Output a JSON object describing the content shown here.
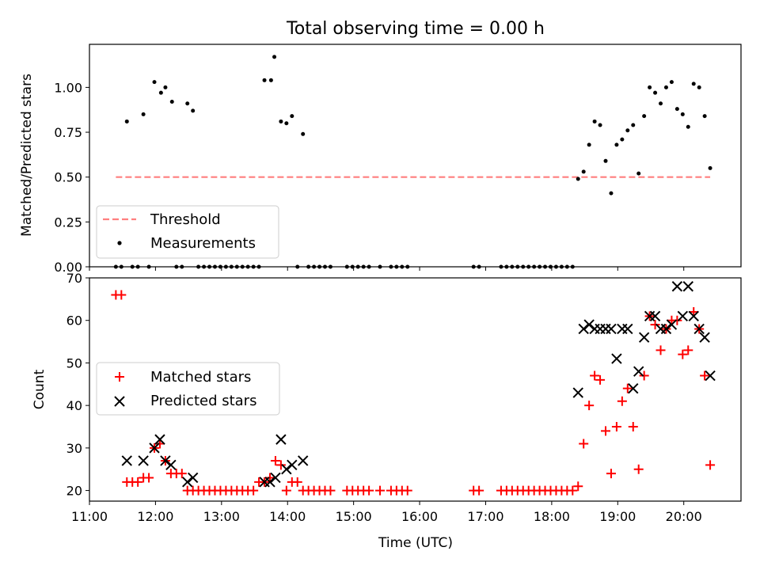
{
  "chart_data": [
    {
      "type": "scatter",
      "title": "Total observing time = 0.00 h",
      "xlabel": "",
      "ylabel": "Matched/Predicted stars",
      "xlim": [
        "11:00",
        "20:52"
      ],
      "ylim": [
        0,
        1.24
      ],
      "yticks": [
        "0.00",
        "0.25",
        "0.50",
        "0.75",
        "1.00"
      ],
      "grid": false,
      "legend_position": "lower-left",
      "threshold": {
        "name": "Threshold",
        "value": 0.5,
        "x_start": "11:24",
        "x_end": "20:24",
        "color": "#ff7f7f"
      },
      "series": [
        {
          "name": "Measurements",
          "color": "#000000",
          "points": [
            [
              "11:34",
              0.81
            ],
            [
              "11:49",
              0.85
            ],
            [
              "11:59",
              1.03
            ],
            [
              "12:05",
              0.97
            ],
            [
              "12:09",
              1.0
            ],
            [
              "12:15",
              0.92
            ],
            [
              "12:29",
              0.91
            ],
            [
              "12:34",
              0.87
            ],
            [
              "13:39",
              1.04
            ],
            [
              "13:45",
              1.04
            ],
            [
              "13:48",
              1.17
            ],
            [
              "13:54",
              0.81
            ],
            [
              "13:59",
              0.8
            ],
            [
              "14:04",
              0.84
            ],
            [
              "14:14",
              0.74
            ],
            [
              "18:24",
              0.49
            ],
            [
              "18:29",
              0.53
            ],
            [
              "18:34",
              0.68
            ],
            [
              "18:39",
              0.81
            ],
            [
              "18:44",
              0.79
            ],
            [
              "18:49",
              0.59
            ],
            [
              "18:54",
              0.41
            ],
            [
              "18:59",
              0.68
            ],
            [
              "19:04",
              0.71
            ],
            [
              "19:09",
              0.76
            ],
            [
              "19:14",
              0.79
            ],
            [
              "19:19",
              0.52
            ],
            [
              "19:24",
              0.84
            ],
            [
              "19:29",
              1.0
            ],
            [
              "19:34",
              0.97
            ],
            [
              "19:39",
              0.91
            ],
            [
              "19:44",
              1.0
            ],
            [
              "19:49",
              1.03
            ],
            [
              "19:54",
              0.88
            ],
            [
              "19:59",
              0.85
            ],
            [
              "20:04",
              0.78
            ],
            [
              "20:09",
              1.02
            ],
            [
              "20:14",
              1.0
            ],
            [
              "20:19",
              0.84
            ],
            [
              "20:24",
              0.55
            ],
            [
              "11:24",
              0
            ],
            [
              "11:29",
              0
            ],
            [
              "11:39",
              0
            ],
            [
              "11:44",
              0
            ],
            [
              "11:54",
              0
            ],
            [
              "12:19",
              0
            ],
            [
              "12:24",
              0
            ],
            [
              "12:39",
              0
            ],
            [
              "12:44",
              0
            ],
            [
              "12:49",
              0
            ],
            [
              "12:54",
              0
            ],
            [
              "12:59",
              0
            ],
            [
              "13:04",
              0
            ],
            [
              "13:09",
              0
            ],
            [
              "13:14",
              0
            ],
            [
              "13:19",
              0
            ],
            [
              "13:24",
              0
            ],
            [
              "13:29",
              0
            ],
            [
              "13:34",
              0
            ],
            [
              "14:09",
              0
            ],
            [
              "14:19",
              0
            ],
            [
              "14:24",
              0
            ],
            [
              "14:29",
              0
            ],
            [
              "14:34",
              0
            ],
            [
              "14:39",
              0
            ],
            [
              "14:54",
              0
            ],
            [
              "14:59",
              0
            ],
            [
              "15:04",
              0
            ],
            [
              "15:09",
              0
            ],
            [
              "15:14",
              0
            ],
            [
              "15:24",
              0
            ],
            [
              "15:34",
              0
            ],
            [
              "15:39",
              0
            ],
            [
              "15:44",
              0
            ],
            [
              "15:49",
              0
            ],
            [
              "16:49",
              0
            ],
            [
              "16:54",
              0
            ],
            [
              "17:14",
              0
            ],
            [
              "17:19",
              0
            ],
            [
              "17:24",
              0
            ],
            [
              "17:29",
              0
            ],
            [
              "17:34",
              0
            ],
            [
              "17:39",
              0
            ],
            [
              "17:44",
              0
            ],
            [
              "17:49",
              0
            ],
            [
              "17:54",
              0
            ],
            [
              "17:59",
              0
            ],
            [
              "18:04",
              0
            ],
            [
              "18:09",
              0
            ],
            [
              "18:14",
              0
            ],
            [
              "18:19",
              0
            ]
          ]
        }
      ]
    },
    {
      "type": "scatter",
      "title": "",
      "xlabel": "Time (UTC)",
      "ylabel": "Count",
      "xlim": [
        "11:00",
        "20:52"
      ],
      "ylim": [
        17.5,
        70
      ],
      "xticks": [
        "11:00",
        "12:00",
        "13:00",
        "14:00",
        "15:00",
        "16:00",
        "17:00",
        "18:00",
        "19:00",
        "20:00"
      ],
      "yticks": [
        "20",
        "30",
        "40",
        "50",
        "60",
        "70"
      ],
      "grid": false,
      "legend_position": "center-left",
      "series": [
        {
          "name": "Matched stars",
          "marker": "plus",
          "color": "#ff0000",
          "points": [
            [
              "11:24",
              66
            ],
            [
              "11:29",
              66
            ],
            [
              "11:34",
              22
            ],
            [
              "11:39",
              22
            ],
            [
              "11:44",
              22
            ],
            [
              "11:49",
              23
            ],
            [
              "11:54",
              23
            ],
            [
              "11:59",
              30
            ],
            [
              "12:04",
              31
            ],
            [
              "12:09",
              27
            ],
            [
              "12:14",
              24
            ],
            [
              "12:19",
              24
            ],
            [
              "12:24",
              24
            ],
            [
              "12:29",
              20
            ],
            [
              "12:34",
              20
            ],
            [
              "12:39",
              20
            ],
            [
              "12:44",
              20
            ],
            [
              "12:49",
              20
            ],
            [
              "12:54",
              20
            ],
            [
              "12:59",
              20
            ],
            [
              "13:04",
              20
            ],
            [
              "13:09",
              20
            ],
            [
              "13:14",
              20
            ],
            [
              "13:19",
              20
            ],
            [
              "13:24",
              20
            ],
            [
              "13:29",
              20
            ],
            [
              "13:34",
              22
            ],
            [
              "13:39",
              22
            ],
            [
              "13:44",
              23
            ],
            [
              "13:49",
              27
            ],
            [
              "13:54",
              26
            ],
            [
              "13:59",
              20
            ],
            [
              "14:04",
              22
            ],
            [
              "14:09",
              22
            ],
            [
              "14:14",
              20
            ],
            [
              "14:19",
              20
            ],
            [
              "14:24",
              20
            ],
            [
              "14:29",
              20
            ],
            [
              "14:34",
              20
            ],
            [
              "14:39",
              20
            ],
            [
              "14:54",
              20
            ],
            [
              "14:59",
              20
            ],
            [
              "15:04",
              20
            ],
            [
              "15:09",
              20
            ],
            [
              "15:14",
              20
            ],
            [
              "15:24",
              20
            ],
            [
              "15:34",
              20
            ],
            [
              "15:39",
              20
            ],
            [
              "15:44",
              20
            ],
            [
              "15:49",
              20
            ],
            [
              "16:49",
              20
            ],
            [
              "16:54",
              20
            ],
            [
              "17:14",
              20
            ],
            [
              "17:19",
              20
            ],
            [
              "17:24",
              20
            ],
            [
              "17:29",
              20
            ],
            [
              "17:34",
              20
            ],
            [
              "17:39",
              20
            ],
            [
              "17:44",
              20
            ],
            [
              "17:49",
              20
            ],
            [
              "17:54",
              20
            ],
            [
              "17:59",
              20
            ],
            [
              "18:04",
              20
            ],
            [
              "18:09",
              20
            ],
            [
              "18:14",
              20
            ],
            [
              "18:19",
              20
            ],
            [
              "18:24",
              21
            ],
            [
              "18:29",
              31
            ],
            [
              "18:34",
              40
            ],
            [
              "18:39",
              47
            ],
            [
              "18:44",
              46
            ],
            [
              "18:49",
              34
            ],
            [
              "18:54",
              24
            ],
            [
              "18:59",
              35
            ],
            [
              "19:04",
              41
            ],
            [
              "19:09",
              44
            ],
            [
              "19:14",
              35
            ],
            [
              "19:19",
              25
            ],
            [
              "19:24",
              47
            ],
            [
              "19:29",
              61
            ],
            [
              "19:34",
              59
            ],
            [
              "19:39",
              53
            ],
            [
              "19:44",
              58
            ],
            [
              "19:49",
              60
            ],
            [
              "19:54",
              60
            ],
            [
              "19:59",
              52
            ],
            [
              "20:04",
              53
            ],
            [
              "20:09",
              62
            ],
            [
              "20:14",
              58
            ],
            [
              "20:19",
              47
            ],
            [
              "20:24",
              26
            ]
          ]
        },
        {
          "name": "Predicted stars",
          "marker": "x",
          "color": "#000000",
          "points": [
            [
              "11:34",
              27
            ],
            [
              "11:49",
              27
            ],
            [
              "11:59",
              30
            ],
            [
              "12:04",
              32
            ],
            [
              "12:09",
              27
            ],
            [
              "12:14",
              26
            ],
            [
              "12:29",
              22
            ],
            [
              "12:34",
              23
            ],
            [
              "13:39",
              22
            ],
            [
              "13:44",
              22
            ],
            [
              "13:49",
              23
            ],
            [
              "13:54",
              32
            ],
            [
              "13:59",
              25
            ],
            [
              "14:04",
              26
            ],
            [
              "14:14",
              27
            ],
            [
              "18:24",
              43
            ],
            [
              "18:29",
              58
            ],
            [
              "18:34",
              59
            ],
            [
              "18:39",
              58
            ],
            [
              "18:44",
              58
            ],
            [
              "18:49",
              58
            ],
            [
              "18:54",
              58
            ],
            [
              "18:59",
              51
            ],
            [
              "19:04",
              58
            ],
            [
              "19:09",
              58
            ],
            [
              "19:14",
              44
            ],
            [
              "19:19",
              48
            ],
            [
              "19:24",
              56
            ],
            [
              "19:29",
              61
            ],
            [
              "19:34",
              61
            ],
            [
              "19:39",
              58
            ],
            [
              "19:44",
              58
            ],
            [
              "19:49",
              59
            ],
            [
              "19:54",
              68
            ],
            [
              "19:59",
              61
            ],
            [
              "20:04",
              68
            ],
            [
              "20:09",
              61
            ],
            [
              "20:14",
              58
            ],
            [
              "20:19",
              56
            ],
            [
              "20:24",
              47
            ]
          ]
        }
      ]
    }
  ]
}
